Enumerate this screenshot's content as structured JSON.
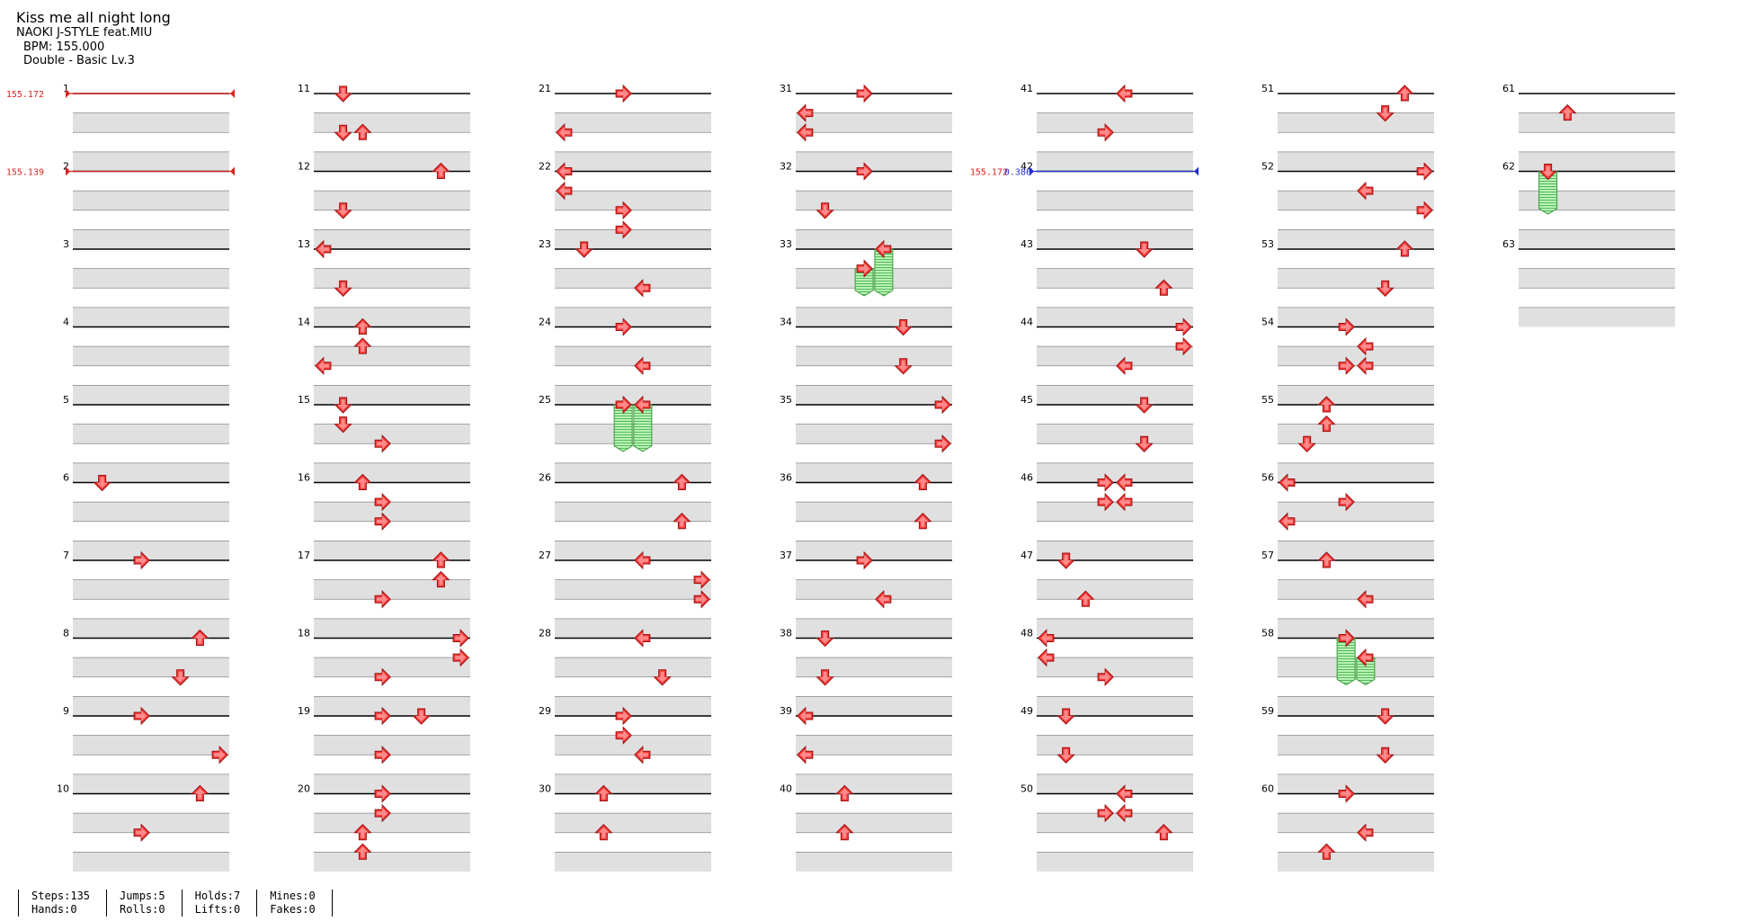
{
  "song": {
    "title": "Kiss me all night long",
    "artist": "NAOKI J-STYLE feat.MIU",
    "bpm": "BPM: 155.000",
    "chart": "Double - Basic  Lv.3"
  },
  "stats": {
    "steps": "Steps:135",
    "hands": "Hands:0",
    "jumps": "Jumps:5",
    "rolls": "Rolls:0",
    "holds": "Holds:7",
    "lifts": "Lifts:0",
    "mines": "Mines:0",
    "fakes": "Fakes:0"
  },
  "colors": {
    "arrow": "#ff3b3b",
    "hold": "#8ee88e",
    "band": "#e0e0e0",
    "bpm_change": "#e02020",
    "stop": "#2030d0"
  },
  "icons": {
    "left": "left-arrow-icon",
    "down": "down-arrow-icon",
    "up": "up-arrow-icon",
    "right": "right-arrow-icon"
  },
  "measure_count": 63,
  "measures_per_column": 10,
  "lanes": 8,
  "bpm_changes": [
    {
      "measure": 1,
      "label": "155.172",
      "color": "red"
    },
    {
      "measure": 2,
      "label": "155.139",
      "color": "red"
    },
    {
      "measure": 42,
      "label": "155.172",
      "label2": "0.386",
      "color": "blue"
    }
  ],
  "notes": [
    [
      6,
      0.0,
      1
    ],
    [
      7,
      0.0,
      3
    ],
    [
      8,
      0.0,
      6
    ],
    [
      8,
      0.5,
      5
    ],
    [
      9,
      0.0,
      3
    ],
    [
      9,
      0.5,
      7
    ],
    [
      10,
      0.0,
      6
    ],
    [
      10,
      0.5,
      3
    ],
    [
      11,
      0.0,
      1
    ],
    [
      11,
      0.5,
      1
    ],
    [
      11,
      0.5,
      2
    ],
    [
      12,
      0.0,
      6
    ],
    [
      12,
      0.5,
      1
    ],
    [
      13,
      0.0,
      0
    ],
    [
      13,
      0.5,
      1
    ],
    [
      14,
      0.0,
      2
    ],
    [
      14,
      0.25,
      2
    ],
    [
      14,
      0.5,
      0
    ],
    [
      15,
      0.0,
      1
    ],
    [
      15,
      0.25,
      1
    ],
    [
      15,
      0.5,
      3
    ],
    [
      16,
      0.0,
      2
    ],
    [
      16,
      0.25,
      3
    ],
    [
      16,
      0.5,
      3
    ],
    [
      17,
      0.0,
      6
    ],
    [
      17,
      0.25,
      6
    ],
    [
      17,
      0.5,
      3
    ],
    [
      18,
      0.0,
      7
    ],
    [
      18,
      0.25,
      7
    ],
    [
      18,
      0.5,
      3
    ],
    [
      19,
      0.0,
      3
    ],
    [
      19,
      0.0,
      5
    ],
    [
      19,
      0.5,
      3
    ],
    [
      20,
      0.0,
      3
    ],
    [
      20,
      0.25,
      3
    ],
    [
      20,
      0.5,
      2
    ],
    [
      20,
      0.75,
      2
    ],
    [
      21,
      0.0,
      3
    ],
    [
      21,
      0.5,
      0
    ],
    [
      22,
      0.0,
      0
    ],
    [
      22,
      0.25,
      0
    ],
    [
      22,
      0.5,
      3
    ],
    [
      22,
      0.75,
      3
    ],
    [
      23,
      0.0,
      1
    ],
    [
      23,
      0.5,
      4
    ],
    [
      24,
      0.0,
      3
    ],
    [
      24,
      0.5,
      4
    ],
    [
      25,
      0.0,
      3
    ],
    [
      25,
      0.0,
      4
    ],
    [
      26,
      0.0,
      6
    ],
    [
      26,
      0.5,
      6
    ],
    [
      27,
      0.0,
      4
    ],
    [
      27,
      0.25,
      7
    ],
    [
      27,
      0.5,
      7
    ],
    [
      28,
      0.0,
      4
    ],
    [
      28,
      0.5,
      5
    ],
    [
      29,
      0.0,
      3
    ],
    [
      29,
      0.25,
      3
    ],
    [
      29,
      0.5,
      4
    ],
    [
      30,
      0.0,
      2
    ],
    [
      30,
      0.5,
      2
    ],
    [
      31,
      0.0,
      3
    ],
    [
      31,
      0.25,
      0
    ],
    [
      31,
      0.5,
      0
    ],
    [
      32,
      0.0,
      3
    ],
    [
      32,
      0.5,
      1
    ],
    [
      33,
      0.0,
      4
    ],
    [
      33,
      0.25,
      3
    ],
    [
      34,
      0.0,
      5
    ],
    [
      34,
      0.5,
      5
    ],
    [
      35,
      0.0,
      7
    ],
    [
      35,
      0.5,
      7
    ],
    [
      36,
      0.0,
      6
    ],
    [
      36,
      0.5,
      6
    ],
    [
      37,
      0.0,
      3
    ],
    [
      37,
      0.5,
      4
    ],
    [
      38,
      0.0,
      1
    ],
    [
      38,
      0.5,
      1
    ],
    [
      39,
      0.0,
      0
    ],
    [
      39,
      0.5,
      0
    ],
    [
      40,
      0.0,
      2
    ],
    [
      40,
      0.5,
      2
    ],
    [
      41,
      0.0,
      4
    ],
    [
      41,
      0.5,
      3
    ],
    [
      43,
      0.0,
      5
    ],
    [
      43,
      0.5,
      6
    ],
    [
      44,
      0.0,
      7
    ],
    [
      44,
      0.25,
      7
    ],
    [
      44,
      0.5,
      4
    ],
    [
      45,
      0.0,
      5
    ],
    [
      45,
      0.5,
      5
    ],
    [
      46,
      0.0,
      3
    ],
    [
      46,
      0.25,
      3
    ],
    [
      46,
      0.25,
      4
    ],
    [
      46,
      0.0,
      4
    ],
    [
      47,
      0.0,
      1
    ],
    [
      47,
      0.5,
      2
    ],
    [
      48,
      0.0,
      0
    ],
    [
      48,
      0.25,
      0
    ],
    [
      48,
      0.5,
      3
    ],
    [
      49,
      0.0,
      1
    ],
    [
      49,
      0.5,
      1
    ],
    [
      50,
      0.0,
      4
    ],
    [
      50,
      0.25,
      3
    ],
    [
      50,
      0.25,
      4
    ],
    [
      50,
      0.5,
      6
    ],
    [
      51,
      0.0,
      6
    ],
    [
      51,
      0.25,
      5
    ],
    [
      52,
      0.0,
      7
    ],
    [
      52,
      0.25,
      4
    ],
    [
      52,
      0.5,
      7
    ],
    [
      53,
      0.0,
      6
    ],
    [
      53,
      0.5,
      5
    ],
    [
      54,
      0.0,
      3
    ],
    [
      54,
      0.25,
      4
    ],
    [
      54,
      0.5,
      3
    ],
    [
      54,
      0.5,
      4
    ],
    [
      55,
      0.0,
      2
    ],
    [
      55,
      0.25,
      2
    ],
    [
      55,
      0.5,
      1
    ],
    [
      56,
      0.0,
      0
    ],
    [
      56,
      0.25,
      3
    ],
    [
      56,
      0.5,
      0
    ],
    [
      57,
      0.0,
      2
    ],
    [
      57,
      0.5,
      4
    ],
    [
      58,
      0.0,
      3
    ],
    [
      58,
      0.25,
      4
    ],
    [
      59,
      0.0,
      5
    ],
    [
      59,
      0.5,
      5
    ],
    [
      60,
      0.0,
      3
    ],
    [
      60,
      0.5,
      4
    ],
    [
      60,
      0.75,
      2
    ],
    [
      61,
      0.25,
      2
    ],
    [
      62,
      0.0,
      1
    ]
  ],
  "holds": [
    [
      25,
      0.0,
      3,
      0.6
    ],
    [
      25,
      0.0,
      4,
      0.6
    ],
    [
      33,
      0.0,
      4,
      0.6
    ],
    [
      33,
      0.25,
      3,
      0.35
    ],
    [
      58,
      0.0,
      3,
      0.6
    ],
    [
      58,
      0.25,
      4,
      0.35
    ],
    [
      62,
      0.0,
      1,
      0.55
    ]
  ]
}
